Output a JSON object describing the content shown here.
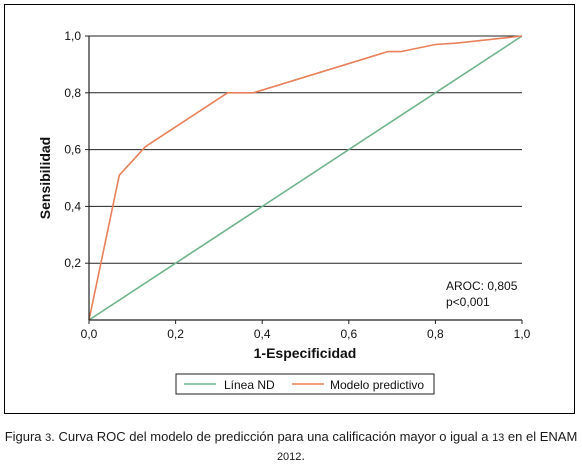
{
  "chart_data": {
    "type": "line",
    "xlabel": "1-Especificidad",
    "ylabel": "Sensibilidad",
    "xlim": [
      0,
      1
    ],
    "ylim": [
      0,
      1
    ],
    "x_ticks": [
      "0,0",
      "0,2",
      "0,4",
      "0,6",
      "0,8",
      "1,0"
    ],
    "y_ticks": [
      "0,2",
      "0,4",
      "0,6",
      "0,8",
      "1,0"
    ],
    "grid": "horizontal",
    "legend_position": "bottom",
    "series": [
      {
        "name": "Línea ND",
        "color": "#6fb38a",
        "x": [
          0,
          1
        ],
        "y": [
          0,
          1
        ]
      },
      {
        "name": "Modelo predictivo",
        "color": "#e8805a",
        "x": [
          0,
          0.07,
          0.13,
          0.15,
          0.32,
          0.38,
          0.69,
          0.72,
          0.8,
          0.85,
          1.0
        ],
        "y": [
          0,
          0.51,
          0.61,
          0.63,
          0.8,
          0.8,
          0.945,
          0.945,
          0.97,
          0.975,
          1.0
        ]
      }
    ],
    "annotations": [
      "AROC: 0,805",
      "p<0,001"
    ]
  },
  "caption": {
    "prefix": "Figura ",
    "fig_num": "3",
    "text1": ". Curva ROC del modelo de predicción para una calificación mayor o igual a ",
    "value": "13",
    "text2": " en el ENAM ",
    "year": "2012",
    "end": "."
  }
}
